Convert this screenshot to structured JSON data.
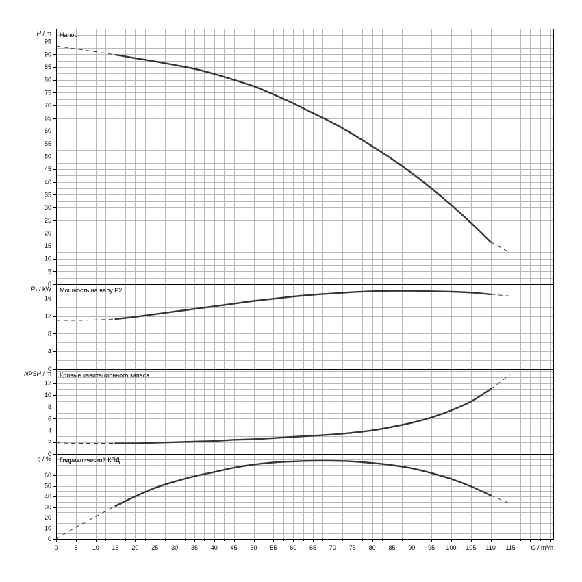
{
  "chart_data": {
    "type": "line",
    "x_axis": {
      "label_var": "Q",
      "label_unit": "m³/h",
      "range": [
        0,
        115
      ],
      "ticks": [
        0,
        5,
        10,
        15,
        20,
        25,
        30,
        35,
        40,
        45,
        50,
        55,
        60,
        65,
        70,
        75,
        80,
        85,
        90,
        95,
        100,
        105,
        110,
        115
      ]
    },
    "panels": [
      {
        "id": "head",
        "title": "Напор",
        "y_label_var": "H",
        "y_label_sub": "",
        "y_label_unit": "m",
        "ylim": [
          0,
          100
        ],
        "y_ticks": [
          0,
          5,
          10,
          15,
          20,
          25,
          30,
          35,
          40,
          45,
          50,
          55,
          60,
          65,
          70,
          75,
          80,
          85,
          90,
          95
        ],
        "series": [
          {
            "style": "solid",
            "x": [
              15,
              20,
              25,
              30,
              35,
              40,
              45,
              50,
              55,
              60,
              65,
              70,
              75,
              80,
              85,
              90,
              95,
              100,
              105,
              110
            ],
            "y": [
              89.8,
              88.5,
              87.2,
              85.8,
              84.3,
              82.3,
              80.0,
              77.5,
              74.3,
              70.8,
              67.0,
              63.2,
              58.8,
              54.0,
              49.0,
              43.5,
              37.5,
              31.0,
              24.0,
              16.5
            ]
          },
          {
            "style": "dashed",
            "x": [
              0,
              5,
              10,
              15
            ],
            "y": [
              93.3,
              92.1,
              91.0,
              89.8
            ]
          },
          {
            "style": "dashed",
            "x": [
              110,
              115
            ],
            "y": [
              16.5,
              12.2
            ]
          }
        ]
      },
      {
        "id": "power",
        "title": "Мощность на валу P2",
        "y_label_var": "P",
        "y_label_sub": "2",
        "y_label_unit": "kW",
        "ylim": [
          0,
          19.2
        ],
        "y_ticks": [
          0,
          4,
          8,
          12,
          16
        ],
        "series": [
          {
            "style": "solid",
            "x": [
              15,
              20,
              25,
              30,
              35,
              40,
              45,
              50,
              55,
              60,
              65,
              70,
              75,
              80,
              85,
              90,
              95,
              100,
              105,
              110
            ],
            "y": [
              11.3,
              11.8,
              12.4,
              13.0,
              13.6,
              14.2,
              14.8,
              15.4,
              15.9,
              16.4,
              16.8,
              17.1,
              17.4,
              17.6,
              17.7,
              17.7,
              17.6,
              17.5,
              17.3,
              16.9
            ]
          },
          {
            "style": "dashed",
            "x": [
              0,
              5,
              10,
              15
            ],
            "y": [
              11.0,
              11.0,
              11.1,
              11.3
            ]
          },
          {
            "style": "dashed",
            "x": [
              110,
              115
            ],
            "y": [
              16.9,
              16.5
            ]
          }
        ]
      },
      {
        "id": "npsh",
        "title": "Кривые кавитационного запаса",
        "y_label_var": "NPSH",
        "y_label_sub": "",
        "y_label_unit": "m",
        "ylim": [
          0,
          14.4
        ],
        "y_ticks": [
          0,
          2,
          4,
          6,
          8,
          10,
          12
        ],
        "series": [
          {
            "style": "solid",
            "x": [
              15,
              20,
              25,
              30,
              35,
              40,
              45,
              50,
              55,
              60,
              65,
              70,
              75,
              80,
              85,
              90,
              95,
              100,
              105,
              110
            ],
            "y": [
              1.8,
              1.8,
              1.9,
              2.0,
              2.1,
              2.2,
              2.4,
              2.5,
              2.7,
              2.9,
              3.1,
              3.3,
              3.6,
              4.0,
              4.6,
              5.3,
              6.2,
              7.4,
              8.9,
              11.0
            ]
          },
          {
            "style": "dashed",
            "x": [
              0,
              5,
              10,
              15
            ],
            "y": [
              1.9,
              1.8,
              1.8,
              1.8
            ]
          },
          {
            "style": "dashed",
            "x": [
              110,
              115
            ],
            "y": [
              11.0,
              13.5
            ]
          }
        ]
      },
      {
        "id": "efficiency",
        "title": "Гидравлический КПД",
        "y_label_var": "η",
        "y_label_sub": "",
        "y_label_unit": "%",
        "ylim": [
          0,
          80
        ],
        "y_ticks": [
          0,
          10,
          20,
          30,
          40,
          50,
          60
        ],
        "series": [
          {
            "style": "solid",
            "x": [
              15,
              20,
              25,
              30,
              35,
              40,
              45,
              50,
              55,
              60,
              65,
              70,
              75,
              80,
              85,
              90,
              95,
              100,
              105,
              110
            ],
            "y": [
              31,
              40,
              48,
              54,
              59,
              63,
              67,
              70,
              72,
              73,
              73.5,
              73.5,
              73,
              71.5,
              69.5,
              66.5,
              62,
              56.5,
              49.5,
              41
            ]
          },
          {
            "style": "dashed",
            "x": [
              0,
              5,
              10,
              15
            ],
            "y": [
              0,
              11,
              21,
              31
            ]
          },
          {
            "style": "dashed",
            "x": [
              110,
              115
            ],
            "y": [
              41,
              33
            ]
          }
        ]
      }
    ]
  }
}
